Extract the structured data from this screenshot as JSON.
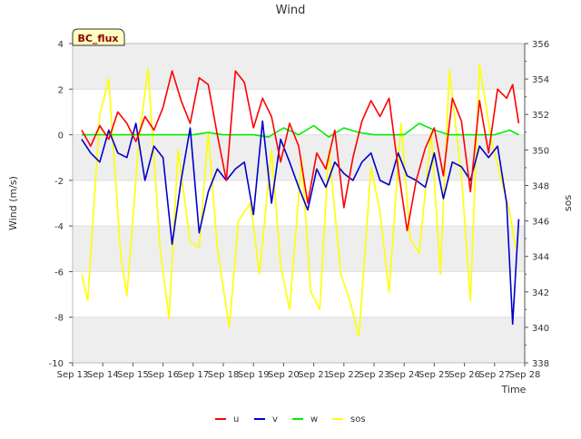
{
  "chart_data": {
    "type": "line",
    "title": "Wind",
    "badge": "BC_flux",
    "xlabel": "Time",
    "ylabel": "Wind (m/s)",
    "y2label": "sos",
    "x_ticks": [
      "Sep 13",
      "Sep 14",
      "Sep 15",
      "Sep 16",
      "Sep 17",
      "Sep 18",
      "Sep 19",
      "Sep 20",
      "Sep 21",
      "Sep 22",
      "Sep 23",
      "Sep 24",
      "Sep 25",
      "Sep 26",
      "Sep 27",
      "Sep 28"
    ],
    "xlim_days": [
      0,
      15
    ],
    "ylim": [
      -10,
      4
    ],
    "y_ticks": [
      -10,
      -8,
      -6,
      -4,
      -2,
      0,
      2,
      4
    ],
    "y2lim": [
      338,
      356
    ],
    "y2_ticks": [
      338,
      340,
      342,
      344,
      346,
      348,
      350,
      352,
      354,
      356
    ],
    "grid": true,
    "legend_position": "bottom-center",
    "series": [
      {
        "name": "u",
        "axis": "left",
        "color": "#ff0000",
        "x": [
          0.3,
          0.6,
          0.9,
          1.2,
          1.5,
          1.8,
          2.1,
          2.4,
          2.7,
          3.0,
          3.3,
          3.6,
          3.9,
          4.2,
          4.5,
          4.8,
          5.1,
          5.4,
          5.7,
          6.0,
          6.3,
          6.6,
          6.9,
          7.2,
          7.5,
          7.8,
          8.1,
          8.4,
          8.7,
          9.0,
          9.3,
          9.6,
          9.9,
          10.2,
          10.5,
          10.8,
          11.1,
          11.4,
          11.7,
          12.0,
          12.3,
          12.6,
          12.9,
          13.2,
          13.5,
          13.8,
          14.1,
          14.4,
          14.6,
          14.8
        ],
        "y": [
          0.2,
          -0.5,
          0.4,
          -0.2,
          1.0,
          0.5,
          -0.3,
          0.8,
          0.2,
          1.2,
          2.8,
          1.5,
          0.5,
          2.5,
          2.2,
          0.0,
          -2.0,
          2.8,
          2.3,
          0.3,
          1.6,
          0.8,
          -1.2,
          0.5,
          -0.5,
          -3.0,
          -0.8,
          -1.5,
          0.2,
          -3.2,
          -1.0,
          0.6,
          1.5,
          0.8,
          1.6,
          -1.5,
          -4.2,
          -2.0,
          -0.6,
          0.3,
          -1.8,
          1.6,
          0.6,
          -2.5,
          1.5,
          -0.8,
          2.0,
          1.6,
          2.2,
          0.5
        ]
      },
      {
        "name": "v",
        "axis": "left",
        "color": "#0000cc",
        "x": [
          0.3,
          0.6,
          0.9,
          1.2,
          1.5,
          1.8,
          2.1,
          2.4,
          2.7,
          3.0,
          3.3,
          3.6,
          3.9,
          4.2,
          4.5,
          4.8,
          5.1,
          5.4,
          5.7,
          6.0,
          6.3,
          6.6,
          6.9,
          7.2,
          7.5,
          7.8,
          8.1,
          8.4,
          8.7,
          9.0,
          9.3,
          9.6,
          9.9,
          10.2,
          10.5,
          10.8,
          11.1,
          11.4,
          11.7,
          12.0,
          12.3,
          12.6,
          12.9,
          13.2,
          13.5,
          13.8,
          14.1,
          14.4,
          14.6,
          14.8
        ],
        "y": [
          -0.2,
          -0.8,
          -1.2,
          0.2,
          -0.8,
          -1.0,
          0.5,
          -2.0,
          -0.5,
          -1.0,
          -4.8,
          -2.0,
          0.3,
          -4.3,
          -2.5,
          -1.5,
          -2.0,
          -1.5,
          -1.2,
          -3.5,
          0.6,
          -3.0,
          -0.2,
          -1.2,
          -2.3,
          -3.3,
          -1.5,
          -2.3,
          -1.2,
          -1.7,
          -2.0,
          -1.2,
          -0.8,
          -2.0,
          -2.2,
          -0.8,
          -1.8,
          -2.0,
          -2.3,
          -0.8,
          -2.8,
          -1.2,
          -1.4,
          -2.0,
          -0.5,
          -1.0,
          -0.5,
          -3.0,
          -8.3,
          -3.7
        ]
      },
      {
        "name": "w",
        "axis": "left",
        "color": "#00ee00",
        "x": [
          0.3,
          1.0,
          2.0,
          3.0,
          4.0,
          4.5,
          5.0,
          6.0,
          6.5,
          7.0,
          7.5,
          8.0,
          8.5,
          9.0,
          9.5,
          10.0,
          10.5,
          11.0,
          11.5,
          12.0,
          12.5,
          13.0,
          13.5,
          14.0,
          14.5,
          14.8
        ],
        "y": [
          0.0,
          0.0,
          0.0,
          0.0,
          0.0,
          0.1,
          0.0,
          0.0,
          -0.1,
          0.3,
          0.0,
          0.4,
          -0.1,
          0.3,
          0.1,
          0.0,
          0.0,
          0.0,
          0.5,
          0.2,
          0.0,
          0.0,
          0.0,
          0.0,
          0.2,
          0.0
        ]
      },
      {
        "name": "sos",
        "axis": "right",
        "color": "#ffff00",
        "x": [
          0.3,
          0.5,
          0.9,
          1.2,
          1.6,
          1.8,
          2.2,
          2.5,
          2.9,
          3.2,
          3.5,
          3.9,
          4.2,
          4.5,
          4.8,
          5.2,
          5.5,
          5.9,
          6.2,
          6.6,
          6.9,
          7.2,
          7.6,
          7.9,
          8.2,
          8.5,
          8.9,
          9.2,
          9.5,
          9.9,
          10.2,
          10.5,
          10.9,
          11.2,
          11.5,
          11.9,
          12.2,
          12.5,
          12.9,
          13.2,
          13.5,
          13.9,
          14.2,
          14.5,
          14.7
        ],
        "y": [
          343.0,
          341.5,
          352.0,
          354.0,
          344.0,
          341.8,
          350.5,
          354.6,
          344.5,
          340.5,
          350.0,
          344.8,
          344.5,
          351.0,
          344.5,
          340.0,
          346.0,
          347.0,
          343.0,
          350.0,
          343.5,
          341.0,
          349.5,
          342.0,
          341.0,
          350.0,
          343.0,
          341.5,
          339.5,
          349.0,
          346.5,
          342.0,
          351.5,
          345.0,
          344.2,
          351.0,
          343.0,
          354.5,
          348.5,
          341.5,
          354.8,
          350.5,
          348.5,
          346.5,
          344.5
        ]
      }
    ],
    "bands": [
      [
        2,
        4
      ],
      [
        -2,
        0
      ],
      [
        -6,
        -4
      ],
      [
        -10,
        -8
      ]
    ]
  }
}
